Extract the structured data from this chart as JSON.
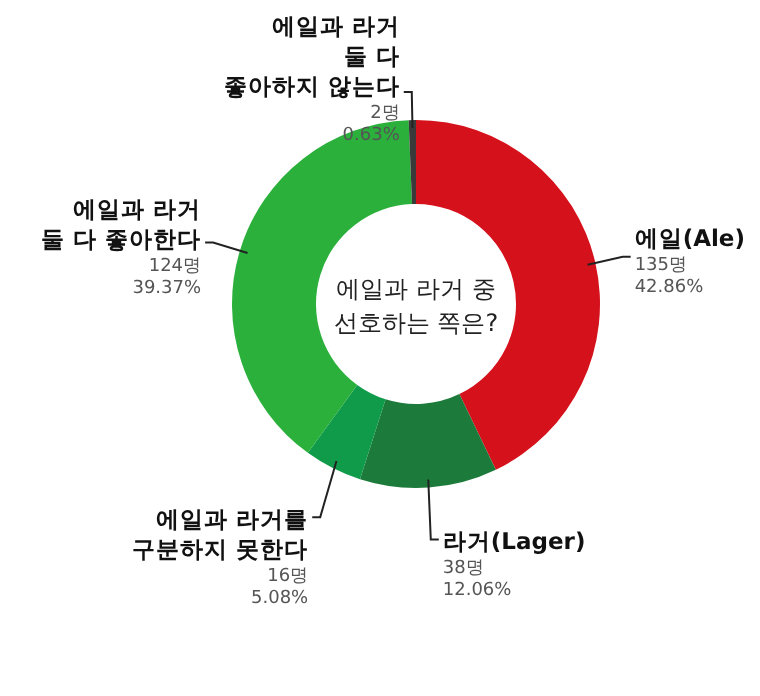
{
  "chart_data": {
    "type": "donut",
    "title": "에일과 라거 중\n선호하는 쪽은?",
    "categories": [
      "에일(Ale)",
      "라거(Lager)",
      "에일과 라거를\n구분하지 못한다",
      "에일과 라거\n둘 다 좋아한다",
      "에일과 라거\n둘 다\n좋아하지 않는다"
    ],
    "values": [
      135,
      38,
      16,
      124,
      2
    ],
    "value_labels": [
      "135명\n42.86%",
      "38명\n12.06%",
      "16명\n5.08%",
      "124명\n39.37%",
      "2명\n0.63%"
    ],
    "colors": [
      "#d5121c",
      "#1c7a3a",
      "#0f9b4a",
      "#2bb03c",
      "#3a3a3a"
    ]
  }
}
